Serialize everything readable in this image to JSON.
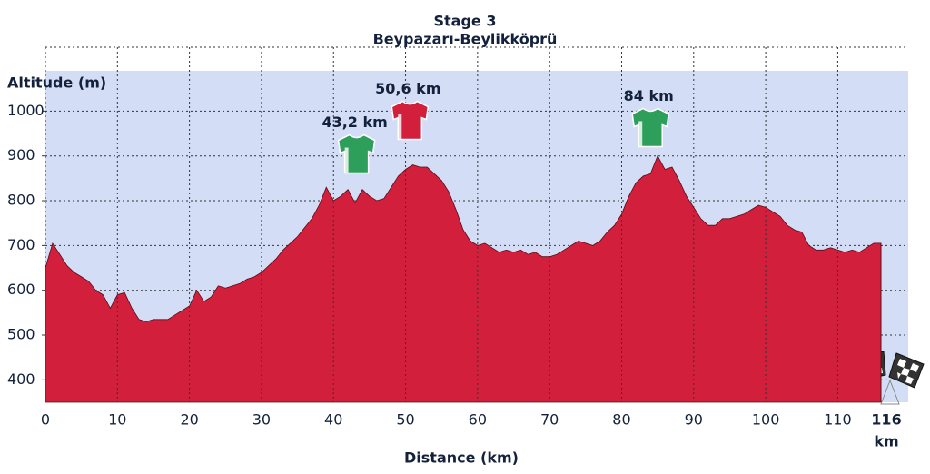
{
  "chart_data": {
    "type": "area",
    "title": "Stage 3",
    "subtitle": "Beypazarı-Beylikköprü",
    "y_label": "Altitude (m)",
    "x_label": "Distance (km)",
    "color": "#d11f3c",
    "background": "#d3def6",
    "grid": true,
    "xlim": [
      0,
      116
    ],
    "ylim": [
      350,
      1090
    ],
    "xticks": [
      0,
      10,
      20,
      30,
      40,
      50,
      60,
      70,
      80,
      90,
      100,
      110
    ],
    "yticks": [
      400,
      500,
      600,
      700,
      800,
      900,
      1000
    ],
    "finish": {
      "distance": 116,
      "unit": "km"
    },
    "x": [
      0,
      1,
      2,
      3,
      4,
      5,
      6,
      7,
      8,
      9,
      10,
      11,
      12,
      13,
      14,
      15,
      16,
      17,
      18,
      19,
      20,
      21,
      22,
      23,
      24,
      25,
      26,
      27,
      28,
      29,
      30,
      31,
      32,
      33,
      34,
      35,
      36,
      37,
      38,
      39,
      40,
      41,
      42,
      43,
      44,
      45,
      46,
      47,
      48,
      49,
      50,
      51,
      52,
      53,
      54,
      55,
      56,
      57,
      58,
      59,
      60,
      61,
      62,
      63,
      64,
      65,
      66,
      67,
      68,
      69,
      70,
      71,
      72,
      73,
      74,
      75,
      76,
      77,
      78,
      79,
      80,
      81,
      82,
      83,
      84,
      85,
      86,
      87,
      88,
      89,
      90,
      91,
      92,
      93,
      94,
      95,
      96,
      97,
      98,
      99,
      100,
      101,
      102,
      103,
      104,
      105,
      106,
      107,
      108,
      109,
      110,
      111,
      112,
      113,
      114,
      115,
      116
    ],
    "values": [
      650,
      705,
      680,
      655,
      640,
      630,
      620,
      600,
      590,
      560,
      590,
      595,
      560,
      535,
      530,
      535,
      535,
      535,
      545,
      555,
      565,
      600,
      575,
      585,
      610,
      605,
      610,
      615,
      625,
      630,
      640,
      655,
      670,
      690,
      705,
      720,
      740,
      760,
      790,
      830,
      800,
      810,
      825,
      795,
      825,
      810,
      800,
      805,
      830,
      855,
      870,
      880,
      875,
      875,
      860,
      845,
      820,
      780,
      735,
      710,
      700,
      705,
      695,
      685,
      690,
      685,
      690,
      680,
      685,
      675,
      675,
      680,
      690,
      700,
      710,
      705,
      700,
      710,
      730,
      745,
      770,
      810,
      840,
      855,
      860,
      900,
      870,
      875,
      845,
      810,
      785,
      760,
      745,
      745,
      760,
      760,
      765,
      770,
      780,
      790,
      785,
      775,
      765,
      745,
      735,
      730,
      700,
      690,
      690,
      695,
      690,
      685,
      690,
      685,
      695,
      705,
      705
    ],
    "climbs": [
      {
        "label": "43,2 km",
        "x": 43.2,
        "color": "#2e9e5b"
      },
      {
        "label": "50,6 km",
        "x": 50.6,
        "color": "#d11f3c"
      },
      {
        "label": "84 km",
        "x": 84,
        "color": "#2e9e5b"
      }
    ]
  }
}
